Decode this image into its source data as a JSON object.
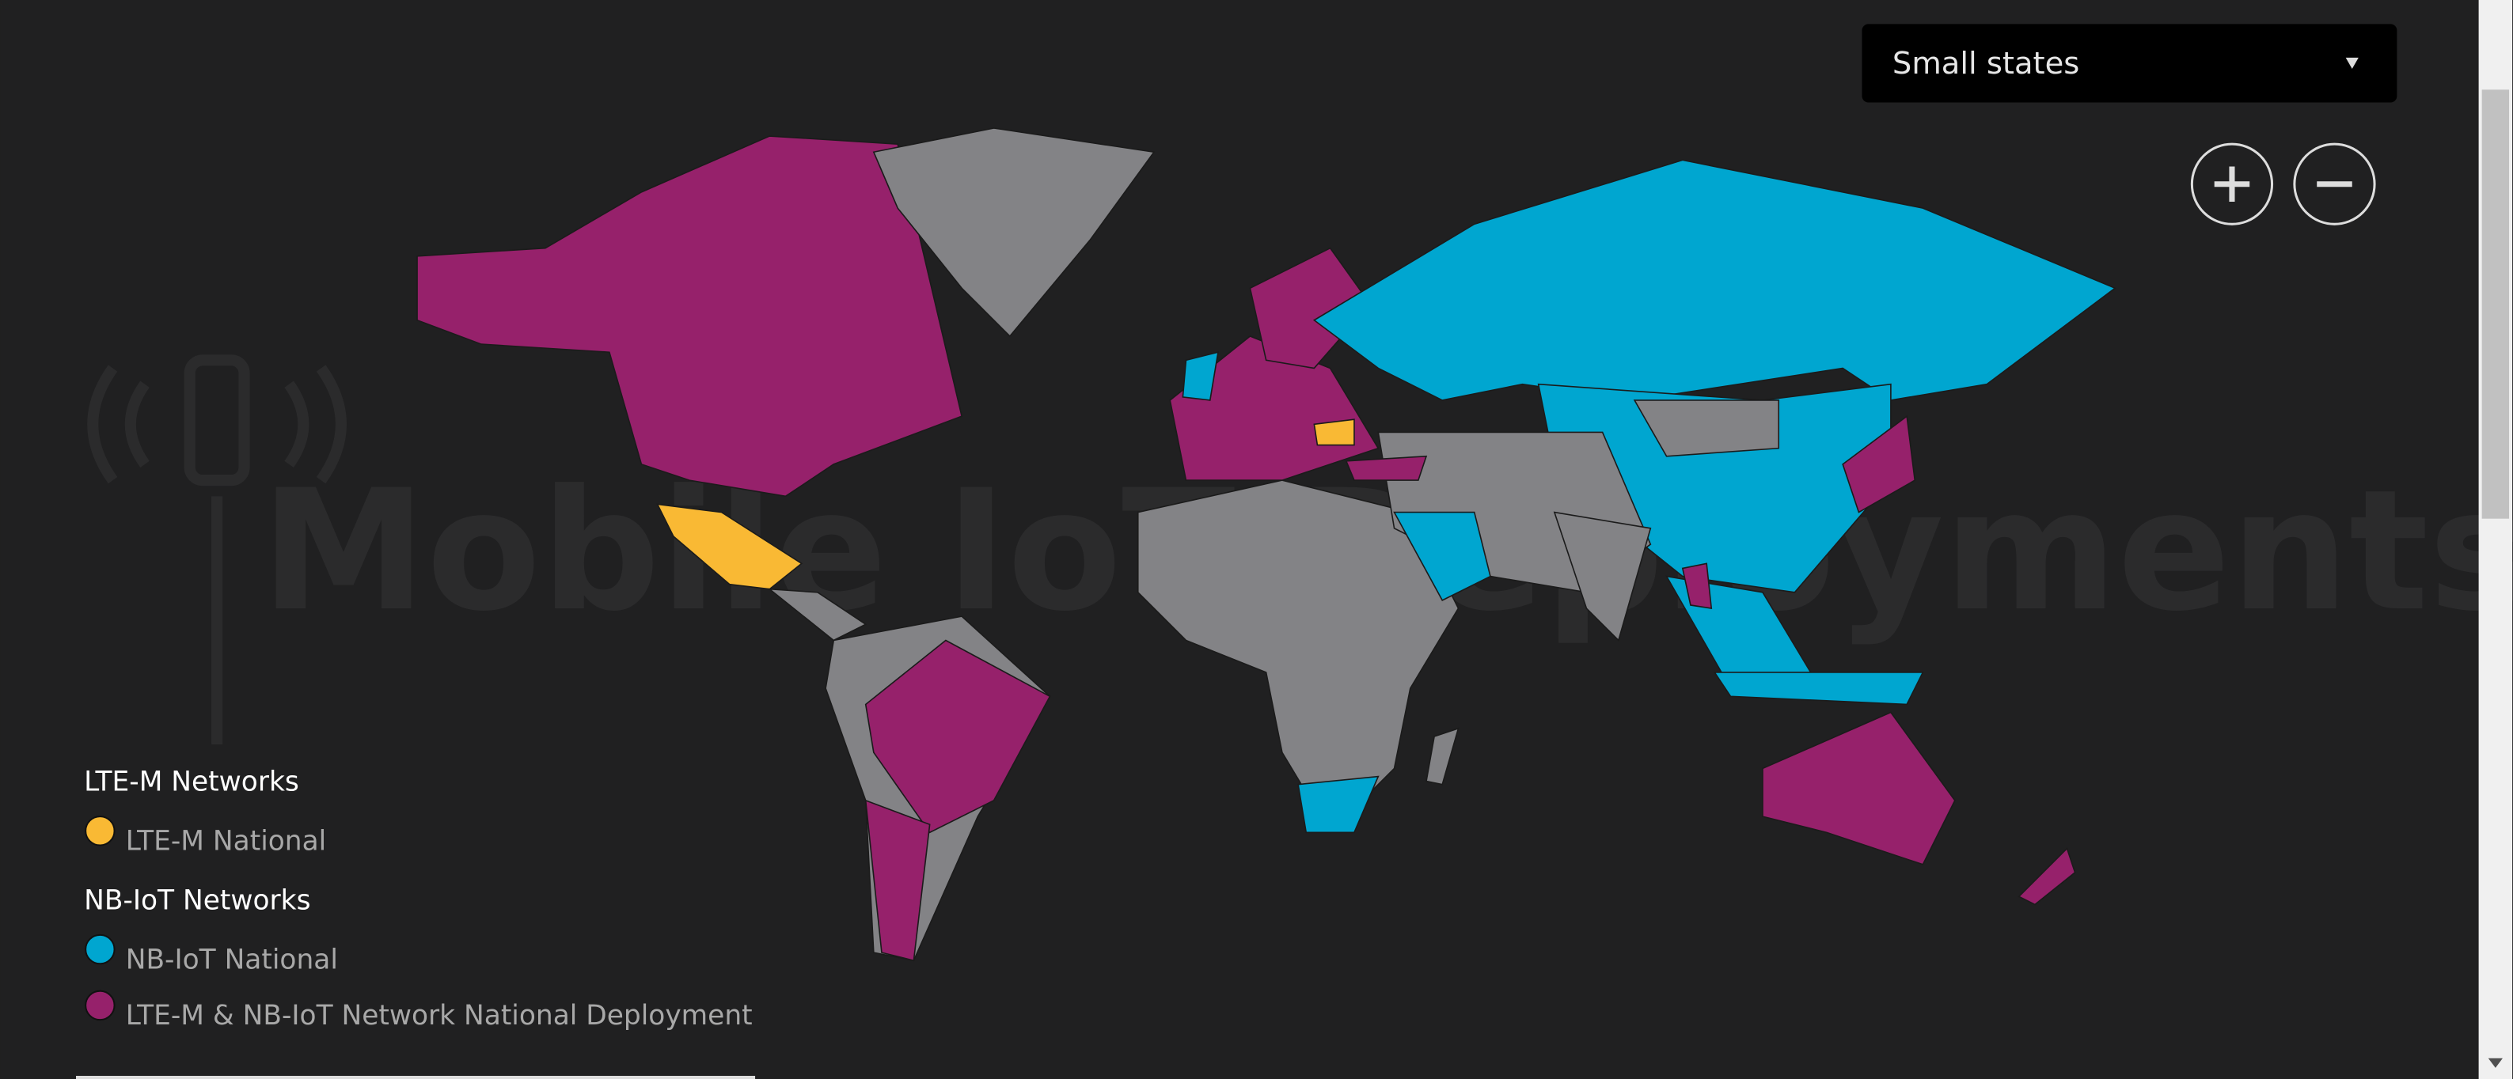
{
  "dropdown": {
    "selected": "Small states"
  },
  "watermark": "Mobile IoT Deployments",
  "legend": {
    "groups": [
      {
        "title": "LTE-M Networks",
        "items": [
          {
            "label": "LTE-M National",
            "color": "#f9b934"
          }
        ]
      },
      {
        "title": "NB-IoT Networks",
        "items": [
          {
            "label": "NB-IoT National",
            "color": "#00a6d0"
          },
          {
            "label": "LTE-M & NB-IoT Network National Deployment",
            "color": "#96216b"
          }
        ]
      }
    ]
  }
}
